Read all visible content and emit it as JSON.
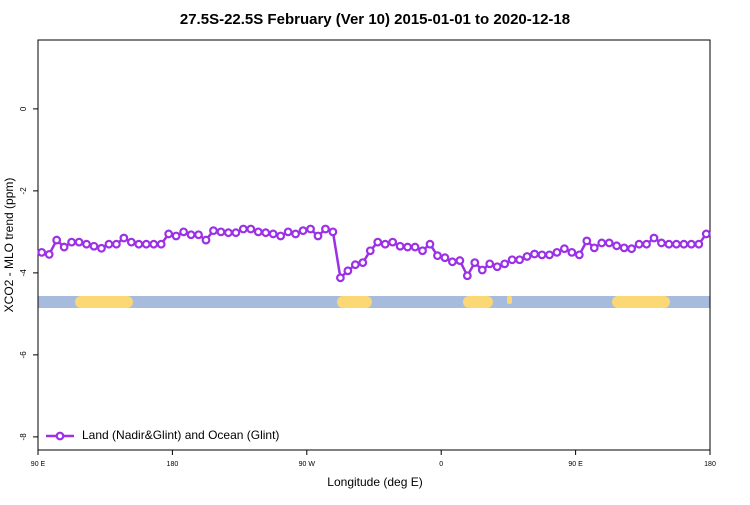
{
  "chart_data": {
    "type": "line",
    "title": "27.5S-22.5S February (Ver 10)   2015-01-01 to 2020-12-18",
    "xlabel": "Longitude (deg E)",
    "ylabel": "XCO2 - MLO trend (ppm)",
    "x": [
      92.5,
      97.5,
      102.5,
      107.5,
      112.5,
      117.5,
      122.5,
      127.5,
      132.5,
      137.5,
      142.5,
      147.5,
      152.5,
      157.5,
      162.5,
      167.5,
      172.5,
      177.5,
      182.5,
      187.5,
      192.5,
      197.5,
      202.5,
      207.5,
      212.5,
      217.5,
      222.5,
      227.5,
      232.5,
      237.5,
      242.5,
      247.5,
      252.5,
      257.5,
      262.5,
      267.5,
      272.5,
      277.5,
      282.5,
      287.5,
      292.5,
      297.5,
      302.5,
      307.5,
      312.5,
      317.5,
      322.5,
      327.5,
      332.5,
      337.5,
      342.5,
      347.5,
      352.5,
      357.5,
      362.5,
      367.5,
      372.5,
      377.5,
      382.5,
      387.5,
      392.5,
      397.5,
      402.5,
      407.5,
      412.5,
      417.5,
      422.5,
      427.5,
      432.5,
      437.5,
      442.5,
      447.5,
      452.5,
      457.5,
      462.5,
      467.5,
      472.5,
      477.5,
      482.5,
      487.5,
      492.5,
      497.5,
      502.5,
      507.5,
      512.5,
      517.5,
      522.5,
      527.5,
      532.5,
      537.5
    ],
    "series": [
      {
        "name": "Land (Nadir&Glint) and Ocean (Glint)",
        "color": "#9b30e6",
        "values": [
          -3.5,
          -3.55,
          -3.2,
          -3.37,
          -3.25,
          -3.25,
          -3.3,
          -3.35,
          -3.4,
          -3.3,
          -3.3,
          -3.15,
          -3.25,
          -3.3,
          -3.3,
          -3.3,
          -3.3,
          -3.05,
          -3.1,
          -3.0,
          -3.07,
          -3.07,
          -3.2,
          -2.97,
          -3.0,
          -3.02,
          -3.02,
          -2.93,
          -2.93,
          -3.0,
          -3.02,
          -3.05,
          -3.1,
          -3.0,
          -3.05,
          -2.97,
          -2.93,
          -3.1,
          -2.93,
          -3.0,
          -4.12,
          -3.95,
          -3.8,
          -3.75,
          -3.46,
          -3.25,
          -3.3,
          -3.25,
          -3.35,
          -3.37,
          -3.37,
          -3.46,
          -3.3,
          -3.58,
          -3.63,
          -3.73,
          -3.7,
          -4.07,
          -3.75,
          -3.93,
          -3.78,
          -3.85,
          -3.78,
          -3.68,
          -3.68,
          -3.6,
          -3.54,
          -3.56,
          -3.56,
          -3.5,
          -3.41,
          -3.5,
          -3.56,
          -3.22,
          -3.39,
          -3.27,
          -3.27,
          -3.34,
          -3.39,
          -3.41,
          -3.3,
          -3.3,
          -3.15,
          -3.27,
          -3.3,
          -3.3,
          -3.3,
          -3.3,
          -3.3,
          -3.05
        ]
      }
    ],
    "xlim": [
      90,
      540
    ],
    "xticks": [
      {
        "value": 90,
        "label": "90 E"
      },
      180,
      {
        "value": 270,
        "label": "90 W"
      },
      {
        "value": 360,
        "label": "0"
      },
      {
        "value": 450,
        "label": "90 E"
      },
      {
        "value": 540,
        "label": "180"
      }
    ],
    "ylim": [
      -8.32,
      1.68
    ],
    "yticks": [
      0,
      -2,
      -4,
      -6,
      -8
    ],
    "legend": "bottom-left"
  }
}
